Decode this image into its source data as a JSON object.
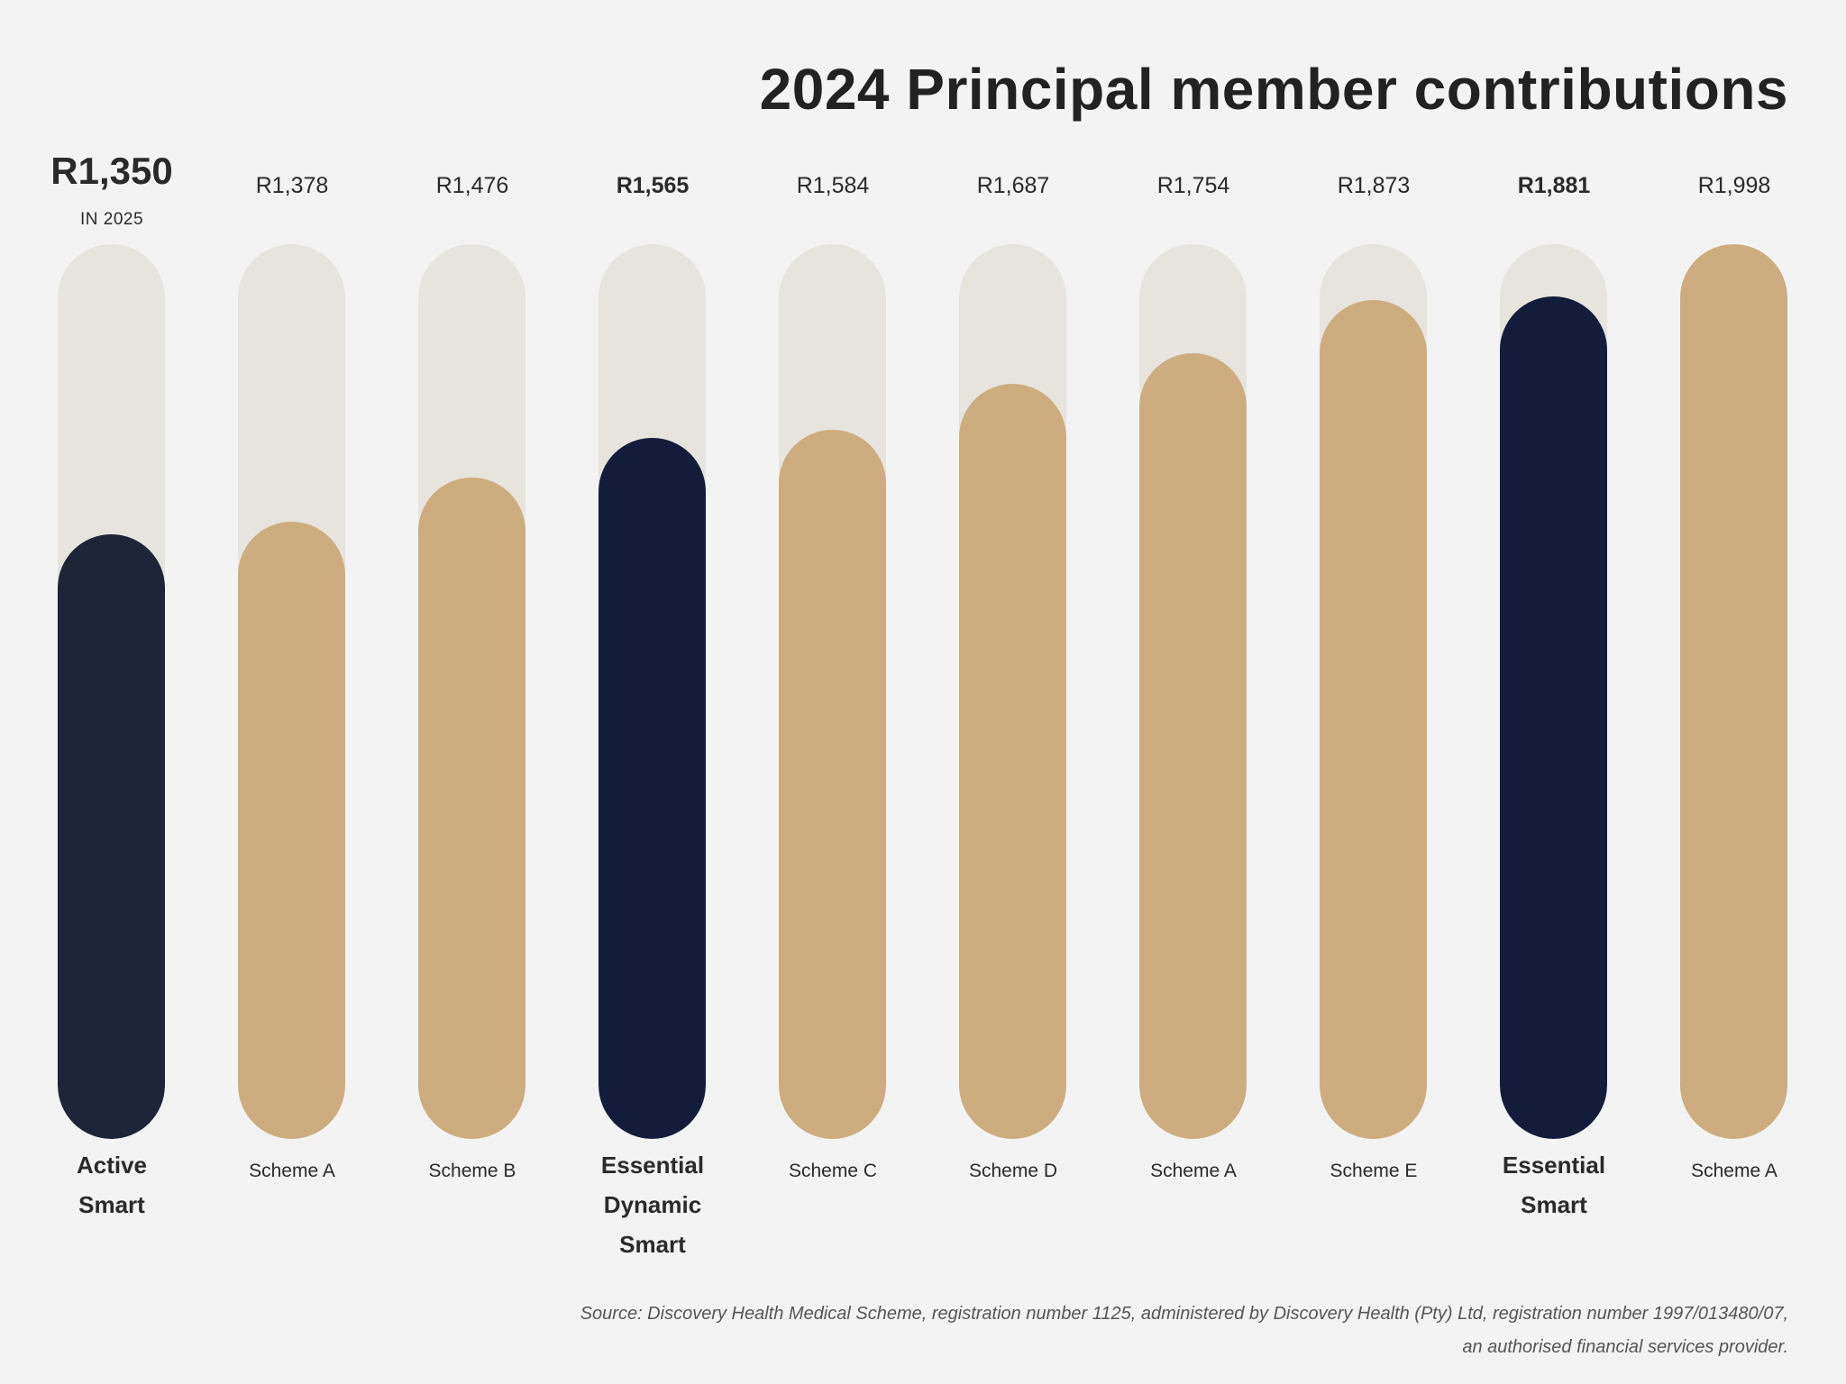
{
  "title": "2024 Principal member contributions",
  "colors": {
    "background": "#f3f3f3",
    "track": "#e7e4de",
    "highlight_dark": "#1f2538",
    "highlight_navy": "#131d3b",
    "gold": "#cdad7f"
  },
  "chart_data": {
    "type": "bar",
    "title": "2024 Principal member contributions",
    "xlabel": "",
    "ylabel": "",
    "ylim": [
      0,
      1998
    ],
    "grid": false,
    "categories": [
      "Active Smart",
      "Scheme A",
      "Scheme B",
      "Essential Dynamic Smart",
      "Scheme C",
      "Scheme D",
      "Scheme A",
      "Scheme E",
      "Essential Smart",
      "Scheme A"
    ],
    "values": [
      1350,
      1378,
      1476,
      1565,
      1584,
      1687,
      1754,
      1873,
      1881,
      1998
    ],
    "bars": [
      {
        "value": 1350,
        "value_label": "R1,350",
        "sub_label": "IN 2025",
        "label_lines": [
          "Active",
          "Smart"
        ],
        "color": "#1f2538",
        "emphasis": "big"
      },
      {
        "value": 1378,
        "value_label": "R1,378",
        "label_lines": [
          "Scheme A"
        ],
        "color": "#cdad7f",
        "emphasis": "normal"
      },
      {
        "value": 1476,
        "value_label": "R1,476",
        "label_lines": [
          "Scheme B"
        ],
        "color": "#cdad7f",
        "emphasis": "normal"
      },
      {
        "value": 1565,
        "value_label": "R1,565",
        "label_lines": [
          "Essential",
          "Dynamic",
          "Smart"
        ],
        "color": "#131d3b",
        "emphasis": "bold"
      },
      {
        "value": 1584,
        "value_label": "R1,584",
        "label_lines": [
          "Scheme C"
        ],
        "color": "#cdad7f",
        "emphasis": "normal"
      },
      {
        "value": 1687,
        "value_label": "R1,687",
        "label_lines": [
          "Scheme D"
        ],
        "color": "#cdad7f",
        "emphasis": "normal"
      },
      {
        "value": 1754,
        "value_label": "R1,754",
        "label_lines": [
          "Scheme A"
        ],
        "color": "#cdad7f",
        "emphasis": "normal"
      },
      {
        "value": 1873,
        "value_label": "R1,873",
        "label_lines": [
          "Scheme E"
        ],
        "color": "#cdad7f",
        "emphasis": "normal"
      },
      {
        "value": 1881,
        "value_label": "R1,881",
        "label_lines": [
          "Essential",
          "Smart"
        ],
        "color": "#131d3b",
        "emphasis": "bold"
      },
      {
        "value": 1998,
        "value_label": "R1,998",
        "label_lines": [
          "Scheme A"
        ],
        "color": "#cdad7f",
        "emphasis": "normal"
      }
    ]
  },
  "source": {
    "line1": "Source: Discovery Health Medical Scheme, registration number 1125, administered by Discovery Health (Pty) Ltd, registration number 1997/013480/07,",
    "line2": "an authorised financial services provider."
  }
}
